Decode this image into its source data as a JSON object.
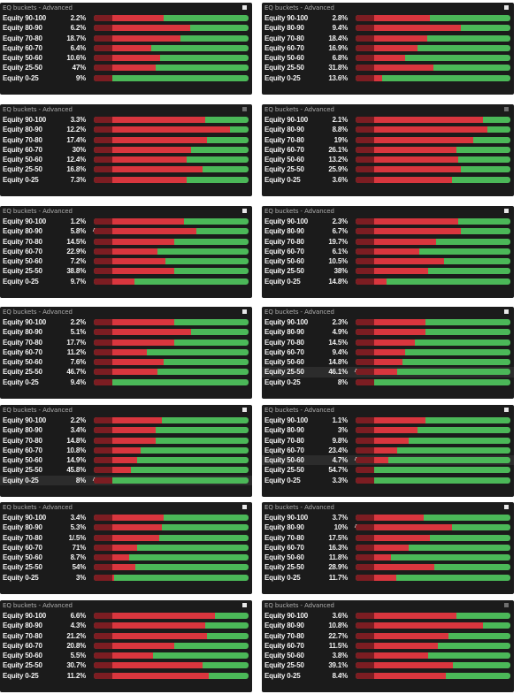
{
  "colors": {
    "panel_bg": "#1b1b1b",
    "red": "#d9363e",
    "dark_red": "#7c1d22",
    "green": "#4bb858",
    "text": "#f2f2f2"
  },
  "panels": [
    {
      "title": "EQ buckets - Advanced",
      "mark": "white",
      "rows": [
        {
          "label": "Equity 90-100",
          "value": "2.2%",
          "red": 0.45
        },
        {
          "label": "Equity 80-90",
          "value": "6.2%",
          "red": 0.62
        },
        {
          "label": "Equity 70-80",
          "value": "18.7%",
          "red": 0.56
        },
        {
          "label": "Equity 60-70",
          "value": "6.4%",
          "red": 0.37
        },
        {
          "label": "Equity 50-60",
          "value": "10.6%",
          "red": 0.43
        },
        {
          "label": "Equity 25-50",
          "value": "47%",
          "red": 0.4
        },
        {
          "label": "Equity 0-25",
          "value": "9%",
          "red": 0.1
        }
      ]
    },
    {
      "title": "EQ buckets - Advanced",
      "mark": "white",
      "rows": [
        {
          "label": "Equity 90-100",
          "value": "2.8%",
          "red": 0.48
        },
        {
          "label": "Equity 80-90",
          "value": "9.4%",
          "red": 0.68
        },
        {
          "label": "Equity 70-80",
          "value": "18.4%",
          "red": 0.46
        },
        {
          "label": "Equity 60-70",
          "value": "16.9%",
          "red": 0.4
        },
        {
          "label": "Equity 50-60",
          "value": "6.8%",
          "red": 0.32
        },
        {
          "label": "Equity 25-50",
          "value": "31.8%",
          "red": 0.5
        },
        {
          "label": "Equity 0-25",
          "value": "13.6%",
          "red": 0.17
        }
      ]
    },
    {
      "title": "EQ buckets - Advanced",
      "mark": "grey",
      "rows": [
        {
          "label": "Equity 90-100",
          "value": "3.3%",
          "red": 0.72
        },
        {
          "label": "Equity 80-90",
          "value": "12.2%",
          "red": 0.88
        },
        {
          "label": "Equity 70-80",
          "value": "17.4%",
          "red": 0.73
        },
        {
          "label": "Equity 60-70",
          "value": "30%",
          "red": 0.63
        },
        {
          "label": "Equity 50-60",
          "value": "12.4%",
          "red": 0.6
        },
        {
          "label": "Equity 25-50",
          "value": "16.8%",
          "red": 0.7
        },
        {
          "label": "Equity 0-25",
          "value": "7.3%",
          "red": 0.6
        }
      ]
    },
    {
      "title": "EQ buckets - Advanced",
      "mark": "grey",
      "rows": [
        {
          "label": "Equity 90-100",
          "value": "2.1%",
          "red": 0.82
        },
        {
          "label": "Equity 80-90",
          "value": "8.8%",
          "red": 0.85
        },
        {
          "label": "Equity 70-80",
          "value": "19%",
          "red": 0.76
        },
        {
          "label": "Equity 60-70",
          "value": "26.1%",
          "red": 0.65
        },
        {
          "label": "Equity 50-60",
          "value": "13.2%",
          "red": 0.66
        },
        {
          "label": "Equity 25-50",
          "value": "25.9%",
          "red": 0.68
        },
        {
          "label": "Equity 0-25",
          "value": "3.6%",
          "red": 0.62
        }
      ]
    },
    {
      "title": "EQ buckets - Advanced",
      "mark": "white",
      "rows": [
        {
          "label": "Equity 90-100",
          "value": "1.2%",
          "red": 0.58
        },
        {
          "label": "Equity 80-90",
          "value": "5.8%",
          "red": 0.66,
          "caret": true
        },
        {
          "label": "Equity 70-80",
          "value": "14.5%",
          "red": 0.52
        },
        {
          "label": "Equity 60-70",
          "value": "22.9%",
          "red": 0.41
        },
        {
          "label": "Equity 50-60",
          "value": "7.2%",
          "red": 0.46
        },
        {
          "label": "Equity 25-50",
          "value": "38.8%",
          "red": 0.52
        },
        {
          "label": "Equity 0-25",
          "value": "9.7%",
          "red": 0.26
        }
      ]
    },
    {
      "title": "EQ buckets - Advanced",
      "mark": "white",
      "rows": [
        {
          "label": "Equity 90-100",
          "value": "2.3%",
          "red": 0.66
        },
        {
          "label": "Equity 80-90",
          "value": "6.7%",
          "red": 0.68
        },
        {
          "label": "Equity 70-80",
          "value": "19.7%",
          "red": 0.52
        },
        {
          "label": "Equity 60-70",
          "value": "6.1%",
          "red": 0.41
        },
        {
          "label": "Equity 50-60",
          "value": "10.5%",
          "red": 0.57
        },
        {
          "label": "Equity 25-50",
          "value": "38%",
          "red": 0.47
        },
        {
          "label": "Equity 0-25",
          "value": "14.8%",
          "red": 0.2
        }
      ]
    },
    {
      "title": "EQ buckets - Advanced",
      "mark": "white",
      "rows": [
        {
          "label": "Equity 90-100",
          "value": "2.2%",
          "red": 0.52
        },
        {
          "label": "Equity 80-90",
          "value": "5.1%",
          "red": 0.63
        },
        {
          "label": "Equity 70-80",
          "value": "17.7%",
          "red": 0.52
        },
        {
          "label": "Equity 60-70",
          "value": "11.2%",
          "red": 0.34
        },
        {
          "label": "Equity 50-60",
          "value": "7.6%",
          "red": 0.45
        },
        {
          "label": "Equity 25-50",
          "value": "46.7%",
          "red": 0.41
        },
        {
          "label": "Equity 0-25",
          "value": "9.4%",
          "red": 0.1
        }
      ]
    },
    {
      "title": "EQ buckets - Advanced",
      "mark": "white",
      "rows": [
        {
          "label": "Equity 90-100",
          "value": "2.3%",
          "red": 0.45
        },
        {
          "label": "Equity 80-90",
          "value": "4.9%",
          "red": 0.45
        },
        {
          "label": "Equity 70-80",
          "value": "14.5%",
          "red": 0.38
        },
        {
          "label": "Equity 60-70",
          "value": "9.4%",
          "red": 0.32
        },
        {
          "label": "Equity 50-60",
          "value": "14.8%",
          "red": 0.3
        },
        {
          "label": "Equity 25-50",
          "value": "46.1%",
          "red": 0.27,
          "selected": true,
          "caret": true
        },
        {
          "label": "Equity 0-25",
          "value": "8%",
          "red": 0.07
        }
      ]
    },
    {
      "title": "EQ buckets - Advanced",
      "mark": "white",
      "rows": [
        {
          "label": "Equity 90-100",
          "value": "2.2%",
          "red": 0.44
        },
        {
          "label": "Equity 80-90",
          "value": "3.4%",
          "red": 0.4
        },
        {
          "label": "Equity 70-80",
          "value": "14.8%",
          "red": 0.4
        },
        {
          "label": "Equity 60-70",
          "value": "10.8%",
          "red": 0.3
        },
        {
          "label": "Equity 50-60",
          "value": "14.9%",
          "red": 0.28
        },
        {
          "label": "Equity 25-50",
          "value": "45.8%",
          "red": 0.24
        },
        {
          "label": "Equity 0-25",
          "value": "8%",
          "red": 0.05,
          "selected": true,
          "caret": true
        }
      ]
    },
    {
      "title": "EQ buckets - Advanced",
      "mark": "white",
      "rows": [
        {
          "label": "Equity 90-100",
          "value": "1.1%",
          "red": 0.45
        },
        {
          "label": "Equity 80-90",
          "value": "3%",
          "red": 0.4
        },
        {
          "label": "Equity 70-80",
          "value": "9.8%",
          "red": 0.34
        },
        {
          "label": "Equity 60-70",
          "value": "23.4%",
          "red": 0.27
        },
        {
          "label": "Equity 50-60",
          "value": "4.7%",
          "red": 0.21,
          "selected": true,
          "caret": true
        },
        {
          "label": "Equity 25-50",
          "value": "54.7%",
          "red": 0.12
        },
        {
          "label": "Equity 0-25",
          "value": "3.3%",
          "red": 0.02
        }
      ]
    },
    {
      "title": "EQ buckets - Advanced",
      "mark": "white",
      "rows": [
        {
          "label": "Equity 90-100",
          "value": "3.4%",
          "red": 0.45
        },
        {
          "label": "Equity 80-90",
          "value": "5.3%",
          "red": 0.44
        },
        {
          "label": "Equity 70-80",
          "value": "1/.5%",
          "red": 0.42
        },
        {
          "label": "Equity 60-70",
          "value": "71%",
          "red": 0.28
        },
        {
          "label": "Equity 50-60",
          "value": "8.7%",
          "red": 0.23
        },
        {
          "label": "Equity 25-50",
          "value": "54%",
          "red": 0.27
        },
        {
          "label": "Equity 0-25",
          "value": "3%",
          "red": 0.13
        }
      ]
    },
    {
      "title": "EQ buckets - Advanced",
      "mark": "white",
      "rows": [
        {
          "label": "Equity 90-100",
          "value": "3.7%",
          "red": 0.44
        },
        {
          "label": "Equity 80-90",
          "value": "10%",
          "red": 0.62,
          "caret": true
        },
        {
          "label": "Equity 70-80",
          "value": "17.5%",
          "red": 0.48
        },
        {
          "label": "Equity 60-70",
          "value": "16.3%",
          "red": 0.34
        },
        {
          "label": "Equity 50-60",
          "value": "11.8%",
          "red": 0.23
        },
        {
          "label": "Equity 25-50",
          "value": "28.9%",
          "red": 0.51
        },
        {
          "label": "Equity 0-25",
          "value": "11.7%",
          "red": 0.26
        }
      ]
    },
    {
      "title": "EQ buckets - Advanced",
      "mark": "white",
      "rows": [
        {
          "label": "Equity 90-100",
          "value": "6.6%",
          "red": 0.78
        },
        {
          "label": "Equity 80-90",
          "value": "4.3%",
          "red": 0.72
        },
        {
          "label": "Equity 70-80",
          "value": "21.2%",
          "red": 0.73
        },
        {
          "label": "Equity 60-70",
          "value": "20.8%",
          "red": 0.52
        },
        {
          "label": "Equity 50-60",
          "value": "5.5%",
          "red": 0.38
        },
        {
          "label": "Equity 25-50",
          "value": "30.7%",
          "red": 0.7
        },
        {
          "label": "Equity 0-25",
          "value": "11.2%",
          "red": 0.74
        }
      ]
    },
    {
      "title": "EQ buckets - Advanced",
      "mark": "grey",
      "rows": [
        {
          "label": "Equity 90-100",
          "value": "3.6%",
          "red": 0.65
        },
        {
          "label": "Equity 80-90",
          "value": "10.8%",
          "red": 0.82
        },
        {
          "label": "Equity 70-80",
          "value": "22.7%",
          "red": 0.6
        },
        {
          "label": "Equity 60-70",
          "value": "11.5%",
          "red": 0.53
        },
        {
          "label": "Equity 50-60",
          "value": "3.8%",
          "red": 0.47
        },
        {
          "label": "Equity 25-50",
          "value": "39.1%",
          "red": 0.63
        },
        {
          "label": "Equity 0-25",
          "value": "8.4%",
          "red": 0.58
        }
      ]
    }
  ]
}
